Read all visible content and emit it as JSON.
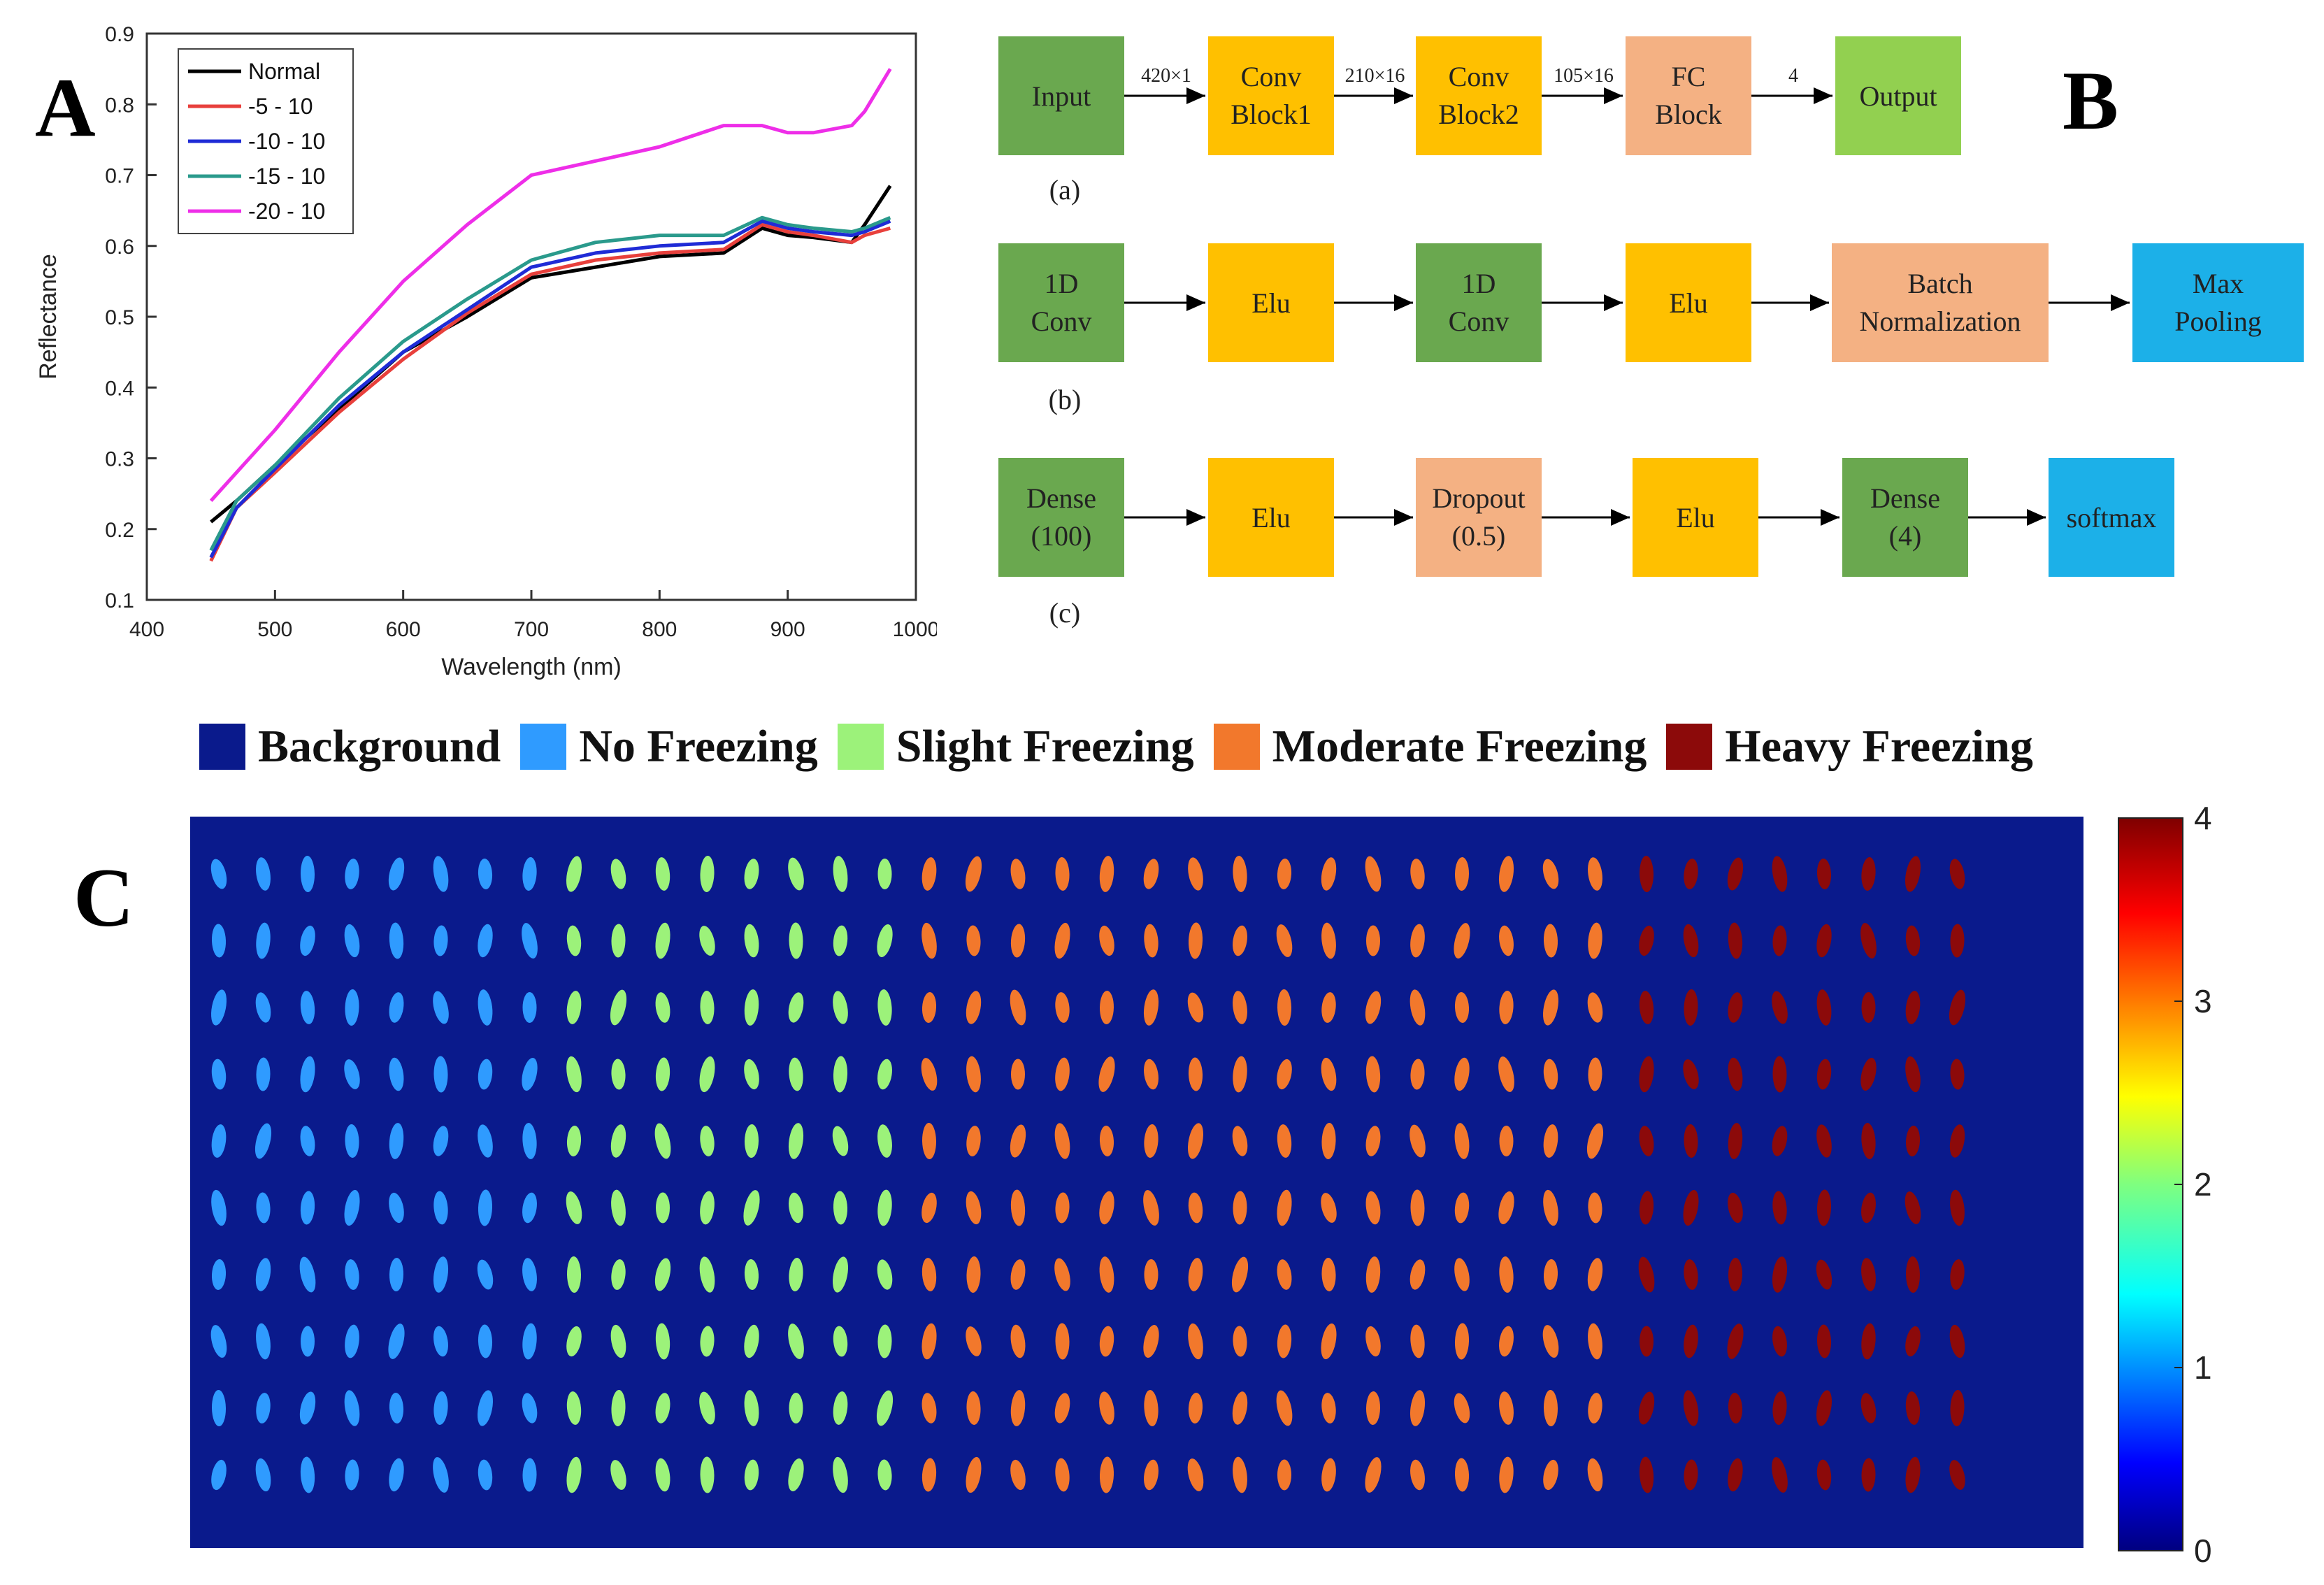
{
  "panel_labels": {
    "a": "A",
    "b": "B",
    "c": "C"
  },
  "chart_data": [
    {
      "type": "line",
      "title": "",
      "xlabel": "Wavelength (nm)",
      "ylabel": "Reflectance",
      "xlim": [
        400,
        1000
      ],
      "ylim": [
        0.1,
        0.9
      ],
      "xticks": [
        400,
        500,
        600,
        700,
        800,
        900,
        1000
      ],
      "yticks": [
        0.1,
        0.2,
        0.3,
        0.4,
        0.5,
        0.6,
        0.7,
        0.8,
        0.9
      ],
      "legend_position": "top-left",
      "x": [
        450,
        470,
        500,
        550,
        600,
        650,
        700,
        750,
        800,
        850,
        880,
        900,
        920,
        950,
        960,
        980
      ],
      "series": [
        {
          "name": "Normal",
          "color": "#000000",
          "values": [
            0.21,
            0.24,
            0.29,
            0.37,
            0.45,
            0.5,
            0.555,
            0.57,
            0.585,
            0.59,
            0.625,
            0.615,
            0.612,
            0.605,
            0.63,
            0.685
          ]
        },
        {
          "name": "-5 - 10",
          "color": "#e8403c",
          "values": [
            0.155,
            0.23,
            0.28,
            0.365,
            0.44,
            0.505,
            0.56,
            0.58,
            0.59,
            0.595,
            0.63,
            0.62,
            0.615,
            0.605,
            0.615,
            0.625
          ]
        },
        {
          "name": "-10 - 10",
          "color": "#1f2bd6",
          "values": [
            0.16,
            0.23,
            0.285,
            0.375,
            0.45,
            0.51,
            0.57,
            0.59,
            0.6,
            0.605,
            0.635,
            0.625,
            0.62,
            0.615,
            0.62,
            0.635
          ]
        },
        {
          "name": "-15 - 10",
          "color": "#2a9a8c",
          "values": [
            0.17,
            0.24,
            0.29,
            0.385,
            0.465,
            0.525,
            0.58,
            0.605,
            0.615,
            0.615,
            0.64,
            0.63,
            0.625,
            0.62,
            0.625,
            0.64
          ]
        },
        {
          "name": "-20 - 10",
          "color": "#ee2ee8",
          "values": [
            0.24,
            0.28,
            0.34,
            0.45,
            0.55,
            0.63,
            0.7,
            0.72,
            0.74,
            0.77,
            0.77,
            0.76,
            0.76,
            0.77,
            0.79,
            0.85
          ]
        }
      ]
    },
    {
      "type": "heatmap",
      "title": "",
      "colorbar_min": 0,
      "colorbar_max": 4,
      "colorbar_ticks": [
        0,
        1,
        2,
        3,
        4
      ],
      "rows": 10,
      "column_groups": [
        {
          "class": "No Freezing",
          "value": 1,
          "columns": 8,
          "color": "#2f9bff"
        },
        {
          "class": "Slight Freezing",
          "value": 2,
          "columns": 8,
          "color": "#9cf27a"
        },
        {
          "class": "Moderate Freezing",
          "value": 3,
          "columns": 16,
          "color": "#f2782c"
        },
        {
          "class": "Heavy Freezing",
          "value": 4,
          "columns": 8,
          "color": "#8c0a0a"
        }
      ],
      "background": {
        "class": "Background",
        "value": 0,
        "color": "#0a1a8c"
      }
    }
  ],
  "diagram": {
    "row_a": {
      "caption": "(a)",
      "nodes": [
        {
          "l1": "Input",
          "l2": "",
          "color": "#6aa84f"
        },
        {
          "l1": "Conv",
          "l2": "Block1",
          "color": "#ffc000"
        },
        {
          "l1": "Conv",
          "l2": "Block2",
          "color": "#ffc000"
        },
        {
          "l1": "FC",
          "l2": "Block",
          "color": "#f4b183"
        },
        {
          "l1": "Output",
          "l2": "",
          "color": "#92d050"
        }
      ],
      "edges": [
        "420×1",
        "210×16",
        "105×16",
        "4"
      ]
    },
    "row_b": {
      "caption": "(b)",
      "nodes": [
        {
          "l1": "1D",
          "l2": "Conv",
          "color": "#6aa84f"
        },
        {
          "l1": "Elu",
          "l2": "",
          "color": "#ffc000"
        },
        {
          "l1": "1D",
          "l2": "Conv",
          "color": "#6aa84f"
        },
        {
          "l1": "Elu",
          "l2": "",
          "color": "#ffc000"
        },
        {
          "l1": "Batch",
          "l2": "Normalization",
          "color": "#f4b183"
        },
        {
          "l1": "Max",
          "l2": "Pooling",
          "color": "#1cb0e8"
        }
      ]
    },
    "row_c": {
      "caption": "(c)",
      "nodes": [
        {
          "l1": "Dense",
          "l2": "(100)",
          "color": "#6aa84f"
        },
        {
          "l1": "Elu",
          "l2": "",
          "color": "#ffc000"
        },
        {
          "l1": "Dropout",
          "l2": "(0.5)",
          "color": "#f4b183"
        },
        {
          "l1": "Elu",
          "l2": "",
          "color": "#ffc000"
        },
        {
          "l1": "Dense",
          "l2": "(4)",
          "color": "#6aa84f"
        },
        {
          "l1": "softmax",
          "l2": "",
          "color": "#1cb0e8"
        }
      ]
    }
  },
  "legend": [
    {
      "label": "Background",
      "color": "#0a1a8c"
    },
    {
      "label": "No Freezing",
      "color": "#2f9bff"
    },
    {
      "label": "Slight Freezing",
      "color": "#9cf27a"
    },
    {
      "label": "Moderate Freezing",
      "color": "#f2782c"
    },
    {
      "label": "Heavy Freezing",
      "color": "#8c0a0a"
    }
  ]
}
